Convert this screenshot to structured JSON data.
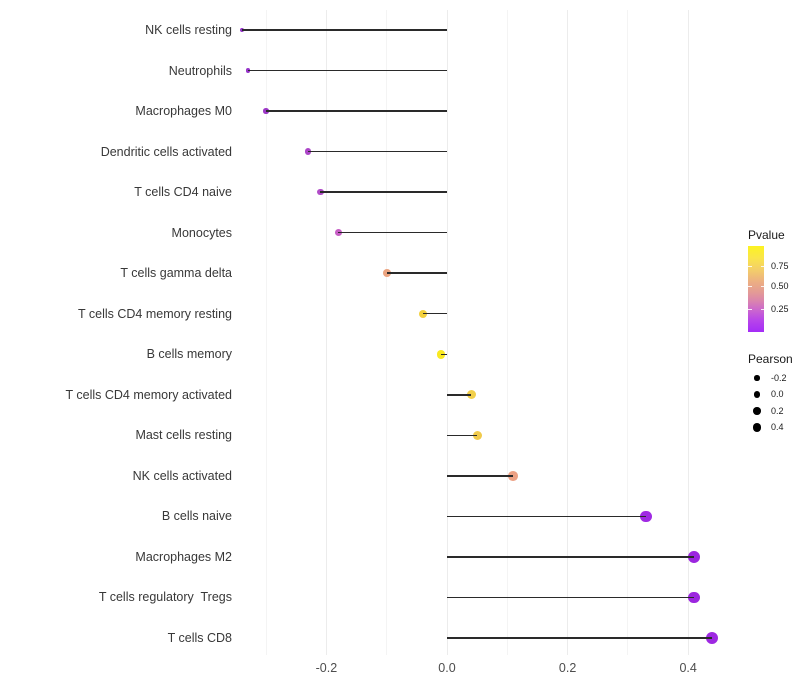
{
  "chart_data": {
    "type": "lollipop",
    "orientation": "horizontal",
    "title": "",
    "xlabel": "",
    "ylabel": "",
    "x_ticks": [
      {
        "label": "-0.2",
        "value": -0.2
      },
      {
        "label": "0.0",
        "value": 0.0
      },
      {
        "label": "0.2",
        "value": 0.2
      },
      {
        "label": "0.4",
        "value": 0.4
      }
    ],
    "xlim": [
      -0.345,
      0.45
    ],
    "baseline_value": 0.0,
    "gridlines": {
      "vertical_major_values": [
        -0.2,
        0.0,
        0.2,
        0.4
      ],
      "vertical_minor_values": [
        -0.3,
        -0.1,
        0.1,
        0.3
      ],
      "horizontal": false
    },
    "stick_color": "#2a2a2a",
    "points": [
      {
        "label": "NK cells resting",
        "pearson": -0.34,
        "pvalue": 0.05,
        "color": "#9331c8"
      },
      {
        "label": "Neutrophils",
        "pearson": -0.33,
        "pvalue": 0.06,
        "color": "#9634c9"
      },
      {
        "label": "Macrophages M0",
        "pearson": -0.3,
        "pvalue": 0.08,
        "color": "#9c38c6"
      },
      {
        "label": "Dendritic cells activated",
        "pearson": -0.23,
        "pvalue": 0.15,
        "color": "#ac45c8"
      },
      {
        "label": "T cells CD4 naive",
        "pearson": -0.21,
        "pvalue": 0.2,
        "color": "#b14cc8"
      },
      {
        "label": "Monocytes",
        "pearson": -0.18,
        "pvalue": 0.3,
        "color": "#c75ec5"
      },
      {
        "label": "T cells gamma delta",
        "pearson": -0.1,
        "pvalue": 0.55,
        "color": "#eba480"
      },
      {
        "label": "T cells CD4 memory resting",
        "pearson": -0.04,
        "pvalue": 0.75,
        "color": "#f3d13e"
      },
      {
        "label": "B cells memory",
        "pearson": -0.01,
        "pvalue": 0.9,
        "color": "#f9e921"
      },
      {
        "label": "T cells CD4 memory activated",
        "pearson": 0.04,
        "pvalue": 0.73,
        "color": "#f1cf4b"
      },
      {
        "label": "Mast cells resting",
        "pearson": 0.05,
        "pvalue": 0.72,
        "color": "#f0ca4c"
      },
      {
        "label": "NK cells activated",
        "pearson": 0.11,
        "pvalue": 0.52,
        "color": "#eca184"
      },
      {
        "label": "B cells naive",
        "pearson": 0.33,
        "pvalue": 0.02,
        "color": "#a02ae3"
      },
      {
        "label": "Macrophages M2",
        "pearson": 0.41,
        "pvalue": 0.01,
        "color": "#9c26df"
      },
      {
        "label": "T cells regulatory  Tregs",
        "pearson": 0.41,
        "pvalue": 0.01,
        "color": "#9c26df"
      },
      {
        "label": "T cells CD8",
        "pearson": 0.44,
        "pvalue": 0.01,
        "color": "#9e28e2"
      }
    ],
    "legend": {
      "pvalue": {
        "title": "Pvalue",
        "tick_labels": [
          "0.75",
          "0.50",
          "0.25"
        ],
        "tick_values": [
          0.75,
          0.5,
          0.25
        ],
        "gradient_stops": [
          {
            "pos": 0,
            "color": "#fcf321"
          },
          {
            "pos": 14,
            "color": "#fae54a"
          },
          {
            "pos": 28,
            "color": "#f3cd6a"
          },
          {
            "pos": 42,
            "color": "#ecae83"
          },
          {
            "pos": 54,
            "color": "#e39a96"
          },
          {
            "pos": 64,
            "color": "#da84ae"
          },
          {
            "pos": 74,
            "color": "#cc68cd"
          },
          {
            "pos": 86,
            "color": "#b846e9"
          },
          {
            "pos": 100,
            "color": "#a42cf7"
          }
        ]
      },
      "pearson": {
        "title": "Pearson",
        "items": [
          {
            "label": "-0.2",
            "value": -0.2
          },
          {
            "label": "0.0",
            "value": 0.0
          },
          {
            "label": "0.2",
            "value": 0.2
          },
          {
            "label": "0.4",
            "value": 0.4
          }
        ],
        "dot_color": "#000000"
      }
    }
  }
}
